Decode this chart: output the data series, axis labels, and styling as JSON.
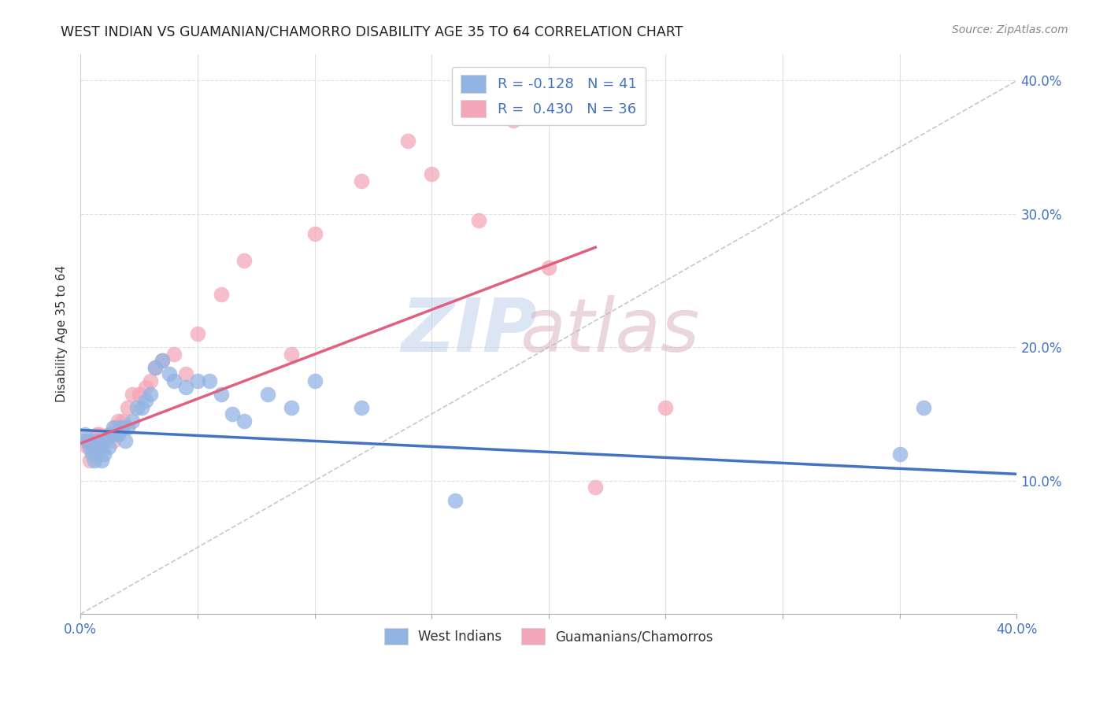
{
  "title": "WEST INDIAN VS GUAMANIAN/CHAMORRO DISABILITY AGE 35 TO 64 CORRELATION CHART",
  "source": "Source: ZipAtlas.com",
  "ylabel": "Disability Age 35 to 64",
  "xmin": 0.0,
  "xmax": 0.4,
  "ymin": 0.0,
  "ymax": 0.42,
  "legend1_label": "R = -0.128   N = 41",
  "legend2_label": "R =  0.430   N = 36",
  "legend_bottom_label1": "West Indians",
  "legend_bottom_label2": "Guamanians/Chamorros",
  "blue_color": "#92b4e3",
  "pink_color": "#f4a7b9",
  "blue_line_color": "#4472c4",
  "pink_line_color": "#e06080",
  "diag_line_color": "#c8c8c8",
  "blue_scatter_x": [
    0.002,
    0.003,
    0.004,
    0.005,
    0.006,
    0.007,
    0.008,
    0.009,
    0.01,
    0.011,
    0.012,
    0.013,
    0.014,
    0.015,
    0.016,
    0.017,
    0.018,
    0.019,
    0.02,
    0.022,
    0.024,
    0.026,
    0.028,
    0.03,
    0.032,
    0.035,
    0.038,
    0.04,
    0.045,
    0.05,
    0.055,
    0.06,
    0.065,
    0.07,
    0.08,
    0.09,
    0.1,
    0.12,
    0.16,
    0.35,
    0.36
  ],
  "blue_scatter_y": [
    0.135,
    0.13,
    0.125,
    0.12,
    0.115,
    0.13,
    0.125,
    0.115,
    0.12,
    0.13,
    0.125,
    0.135,
    0.14,
    0.135,
    0.135,
    0.14,
    0.14,
    0.13,
    0.14,
    0.145,
    0.155,
    0.155,
    0.16,
    0.165,
    0.185,
    0.19,
    0.18,
    0.175,
    0.17,
    0.175,
    0.175,
    0.165,
    0.15,
    0.145,
    0.165,
    0.155,
    0.175,
    0.155,
    0.085,
    0.12,
    0.155
  ],
  "pink_scatter_x": [
    0.002,
    0.003,
    0.004,
    0.005,
    0.006,
    0.007,
    0.008,
    0.009,
    0.01,
    0.012,
    0.014,
    0.015,
    0.016,
    0.018,
    0.02,
    0.022,
    0.025,
    0.028,
    0.03,
    0.032,
    0.035,
    0.04,
    0.045,
    0.05,
    0.06,
    0.07,
    0.09,
    0.1,
    0.12,
    0.14,
    0.15,
    0.17,
    0.185,
    0.2,
    0.22,
    0.25
  ],
  "pink_scatter_y": [
    0.13,
    0.125,
    0.115,
    0.125,
    0.13,
    0.135,
    0.135,
    0.125,
    0.13,
    0.135,
    0.13,
    0.14,
    0.145,
    0.145,
    0.155,
    0.165,
    0.165,
    0.17,
    0.175,
    0.185,
    0.19,
    0.195,
    0.18,
    0.21,
    0.24,
    0.265,
    0.195,
    0.285,
    0.325,
    0.355,
    0.33,
    0.295,
    0.37,
    0.26,
    0.095,
    0.155
  ],
  "blue_trendline_x": [
    0.0,
    0.4
  ],
  "blue_trendline_y": [
    0.138,
    0.105
  ],
  "pink_trendline_x": [
    0.0,
    0.22
  ],
  "pink_trendline_y": [
    0.128,
    0.275
  ],
  "diag_trendline_x": [
    0.0,
    0.4
  ],
  "diag_trendline_y": [
    0.0,
    0.4
  ],
  "grid_color": "#e0e0e0",
  "grid_linestyle": "--",
  "title_color": "#222222",
  "source_color": "#888888",
  "axis_label_color": "#4472c4",
  "watermark_color_zip": "#b8cce8",
  "watermark_color_atlas": "#d8afc0"
}
